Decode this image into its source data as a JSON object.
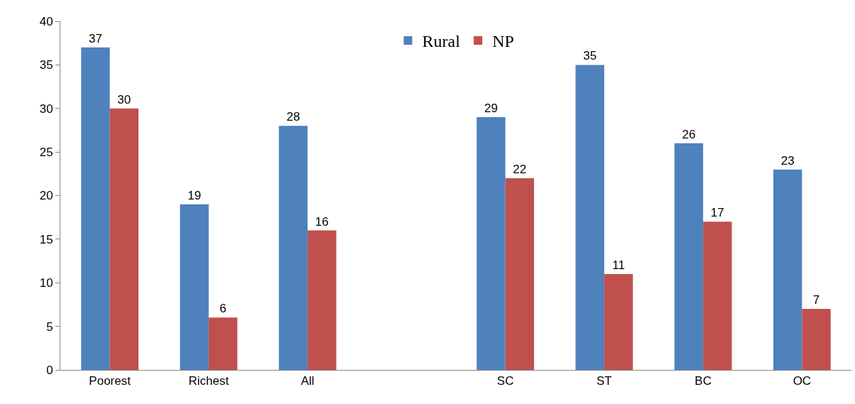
{
  "chart_data": {
    "type": "bar",
    "categories": [
      "Poorest",
      "Richest",
      "All",
      null,
      "SC",
      "ST",
      "BC",
      "OC"
    ],
    "series": [
      {
        "name": "Rural",
        "color": "#4f81bd",
        "values": [
          37,
          19,
          28,
          null,
          29,
          35,
          26,
          23
        ]
      },
      {
        "name": "NP",
        "color": "#c0504d",
        "values": [
          30,
          6,
          16,
          null,
          22,
          11,
          17,
          7
        ]
      }
    ],
    "ylim": [
      0,
      40
    ],
    "yticks": [
      0,
      5,
      10,
      15,
      20,
      25,
      30,
      35,
      40
    ],
    "data_labels": true,
    "legend": "top"
  }
}
